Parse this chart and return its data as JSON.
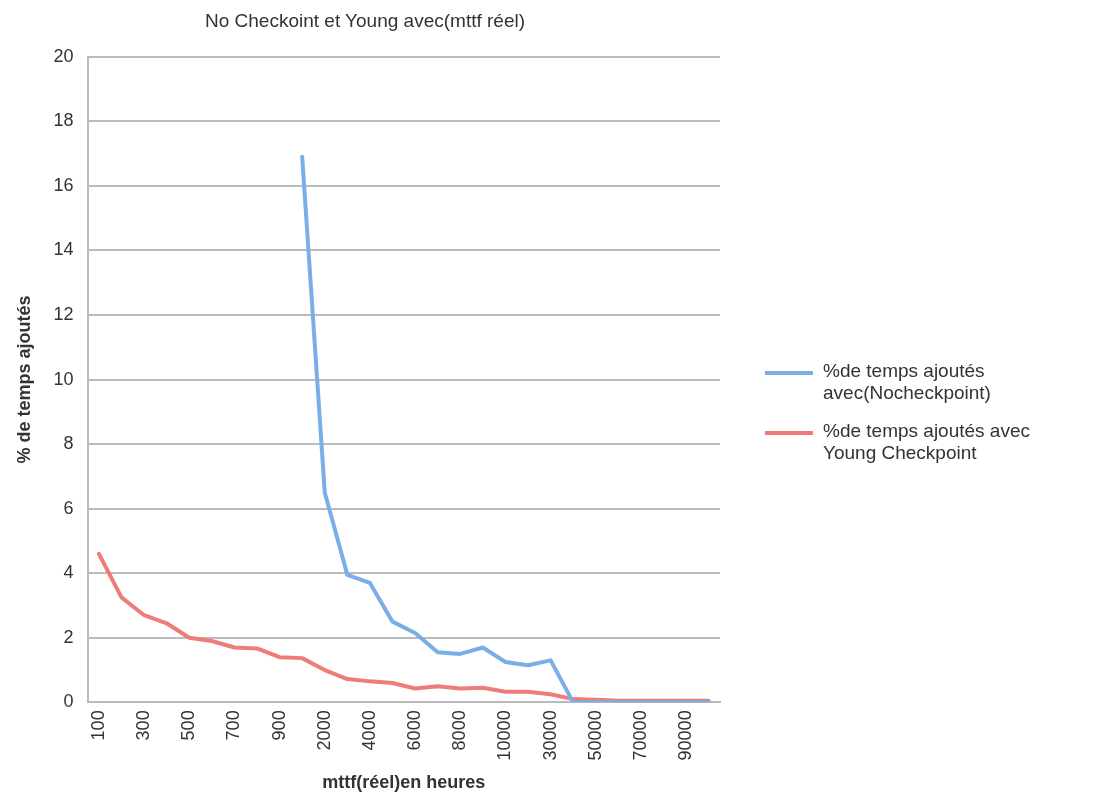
{
  "chart_data": {
    "type": "line",
    "title": "No Checkoint et Young avec(mttf réel)",
    "xlabel": "mttf(réel)en heures",
    "ylabel": "% de temps ajoutés",
    "categories": [
      "100",
      null,
      "300",
      null,
      "500",
      null,
      "700",
      null,
      "900",
      null,
      "2000",
      null,
      "4000",
      null,
      "6000",
      null,
      "8000",
      null,
      "10000",
      null,
      "30000",
      null,
      "50000",
      null,
      "70000",
      null,
      "90000",
      null
    ],
    "series": [
      {
        "name": "%de temps ajoutés avec(Nocheckpoint)",
        "color": "#7aaee8",
        "values": [
          null,
          null,
          null,
          null,
          null,
          null,
          null,
          null,
          null,
          16.9,
          6.5,
          3.95,
          3.7,
          2.5,
          2.15,
          1.55,
          1.5,
          1.7,
          1.25,
          1.15,
          1.3,
          0,
          0,
          0,
          0,
          0,
          0,
          0
        ]
      },
      {
        "name": "%de temps ajoutés avec Young Checkpoint",
        "color": "#f07c78",
        "values": [
          4.6,
          3.25,
          2.7,
          2.45,
          2.0,
          1.9,
          1.7,
          1.67,
          1.4,
          1.37,
          1.0,
          0.72,
          0.65,
          0.6,
          0.43,
          0.5,
          0.43,
          0.45,
          0.33,
          0.33,
          0.25,
          0.1,
          0.08,
          0.05,
          0.05,
          0.05,
          0.05,
          0.05
        ]
      }
    ],
    "ylim": [
      0,
      20
    ],
    "yticks": [
      0,
      2,
      4,
      6,
      8,
      10,
      12,
      14,
      16,
      18,
      20
    ],
    "grid": "y",
    "legend": "right",
    "marker": "none",
    "line_style": "solid"
  }
}
